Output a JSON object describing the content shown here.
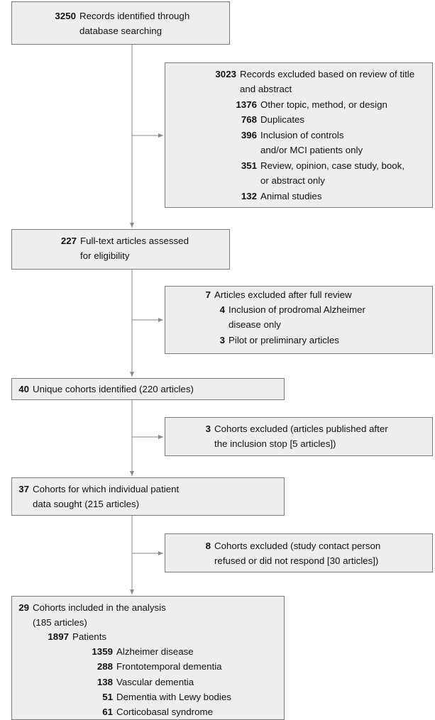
{
  "nodes": [
    {
      "items": [
        {
          "number": "3250",
          "lines": [
            "Records identified through",
            "database searching"
          ]
        }
      ]
    },
    {
      "items": [
        {
          "number": "3023",
          "lines": [
            "Records excluded based on review of title",
            "and abstract"
          ]
        },
        {
          "number": "1376",
          "lines": [
            "Other topic, method, or design"
          ]
        },
        {
          "number": "768",
          "lines": [
            "Duplicates"
          ]
        },
        {
          "number": "396",
          "lines": [
            "Inclusion of controls",
            "and/or MCI patients only"
          ]
        },
        {
          "number": "351",
          "lines": [
            "Review, opinion, case study, book,",
            "or abstract only"
          ]
        },
        {
          "number": "132",
          "lines": [
            "Animal studies"
          ]
        }
      ]
    },
    {
      "items": [
        {
          "number": "227",
          "lines": [
            "Full-text articles assessed",
            "for eligibility"
          ]
        }
      ]
    },
    {
      "items": [
        {
          "number": "7",
          "lines": [
            "Articles excluded after full review"
          ]
        },
        {
          "number": "4",
          "lines": [
            "Inclusion of prodromal Alzheimer",
            "disease only"
          ]
        },
        {
          "number": "3",
          "lines": [
            "Pilot or preliminary articles"
          ]
        }
      ]
    },
    {
      "items": [
        {
          "number": "40",
          "lines": [
            "Unique cohorts identified (220 articles)"
          ]
        }
      ]
    },
    {
      "items": [
        {
          "number": "3",
          "lines": [
            "Cohorts excluded (articles published after",
            "the inclusion stop [5 articles])"
          ]
        }
      ]
    },
    {
      "items": [
        {
          "number": "37",
          "lines": [
            "Cohorts for which individual patient",
            "data sought (215 articles)"
          ]
        }
      ]
    },
    {
      "items": [
        {
          "number": "8",
          "lines": [
            "Cohorts excluded (study contact person",
            "refused or did not respond [30 articles])"
          ]
        }
      ]
    },
    {
      "items": [
        {
          "number": "29",
          "lines": [
            "Cohorts included in the analysis",
            "(185 articles)"
          ]
        },
        {
          "number": "1897",
          "lines": [
            "Patients"
          ]
        },
        {
          "number": "1359",
          "lines": [
            "Alzheimer disease"
          ]
        },
        {
          "number": "288",
          "lines": [
            "Frontotemporal dementia"
          ]
        },
        {
          "number": "138",
          "lines": [
            "Vascular dementia"
          ]
        },
        {
          "number": "51",
          "lines": [
            "Dementia with Lewy bodies"
          ]
        },
        {
          "number": "61",
          "lines": [
            "Corticobasal syndrome"
          ]
        }
      ]
    }
  ]
}
